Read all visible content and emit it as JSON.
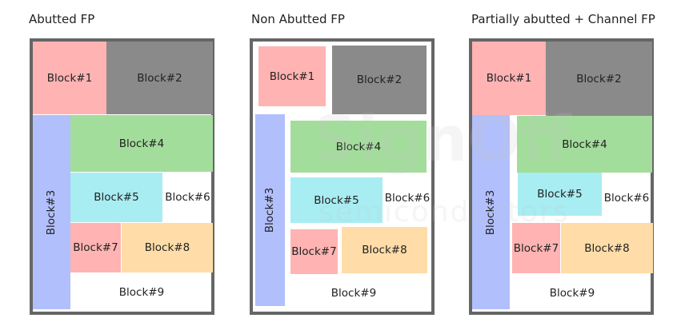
{
  "panels": [
    {
      "title": "Abutted FP",
      "blocks": [
        "Block#1",
        "Block#2",
        "Block#3",
        "Block#4",
        "Block#5",
        "Block#6",
        "Block#7",
        "Block#8",
        "Block#9"
      ]
    },
    {
      "title": "Non Abutted FP",
      "blocks": [
        "Block#1",
        "Block#2",
        "Block#3",
        "Block#4",
        "Block#5",
        "Block#6",
        "Block#7",
        "Block#8",
        "Block#9"
      ]
    },
    {
      "title": "Partially abutted + Channel FP",
      "blocks": [
        "Block#1",
        "Block#2",
        "Block#3",
        "Block#4",
        "Block#5",
        "Block#6",
        "Block#7",
        "Block#8",
        "Block#9"
      ]
    }
  ],
  "colors": {
    "block1": "#ffb3b3",
    "block2": "#8a8a8a",
    "block3": "#b1bffc",
    "block4": "#a3dd9b",
    "block5": "#a8edf2",
    "block7": "#ffb3b3",
    "block8": "#ffdca8",
    "frame": "#666666"
  },
  "watermark": {
    "line1": "SignOff",
    "line2": "semiconductors"
  }
}
